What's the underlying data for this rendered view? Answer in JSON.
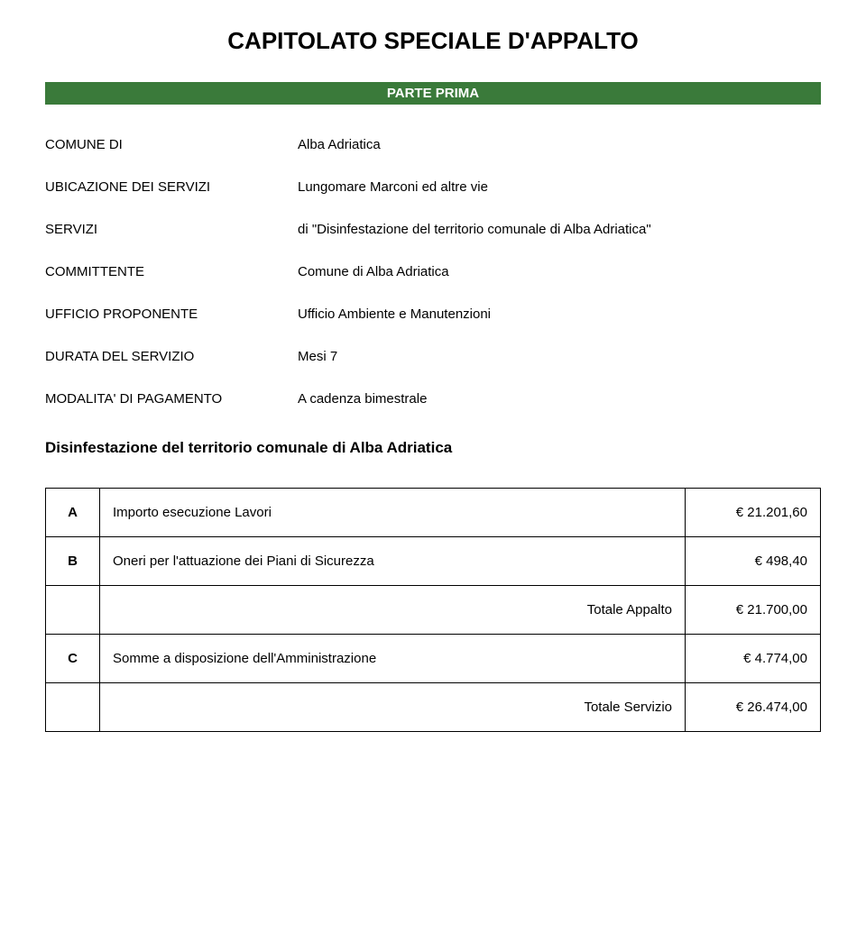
{
  "title": "CAPITOLATO SPECIALE D'APPALTO",
  "parte": "PARTE PRIMA",
  "info_rows": [
    {
      "label": "COMUNE DI",
      "value": "Alba Adriatica"
    },
    {
      "label": "UBICAZIONE DEI SERVIZI",
      "value": "Lungomare Marconi ed altre vie"
    },
    {
      "label": "SERVIZI",
      "value": "di \"Disinfestazione del territorio comunale di Alba Adriatica\""
    },
    {
      "label": "COMMITTENTE",
      "value": "Comune di Alba Adriatica"
    },
    {
      "label": "UFFICIO PROPONENTE",
      "value": "Ufficio Ambiente e Manutenzioni"
    },
    {
      "label": "DURATA DEL SERVIZIO",
      "value": "Mesi 7"
    },
    {
      "label": "MODALITA' DI PAGAMENTO",
      "value": "A cadenza bimestrale"
    }
  ],
  "subheading": "Disinfestazione del territorio comunale di Alba Adriatica",
  "cost_rows": [
    {
      "letter": "A",
      "desc": "Importo esecuzione Lavori",
      "desc_align": "left",
      "amount": "€ 21.201,60"
    },
    {
      "letter": "B",
      "desc": "Oneri per l'attuazione dei Piani di Sicurezza",
      "desc_align": "left",
      "amount": "€ 498,40"
    },
    {
      "letter": "",
      "desc": "Totale Appalto",
      "desc_align": "right",
      "amount": "€ 21.700,00"
    },
    {
      "letter": "C",
      "desc": "Somme a disposizione dell'Amministrazione",
      "desc_align": "left",
      "amount": "€ 4.774,00"
    },
    {
      "letter": "",
      "desc": "Totale Servizio",
      "desc_align": "right",
      "amount": "€ 26.474,00"
    }
  ],
  "colors": {
    "bar_bg": "#3a7a3a",
    "bar_text": "#ffffff",
    "border": "#000000",
    "page_bg": "#ffffff",
    "text": "#000000"
  }
}
